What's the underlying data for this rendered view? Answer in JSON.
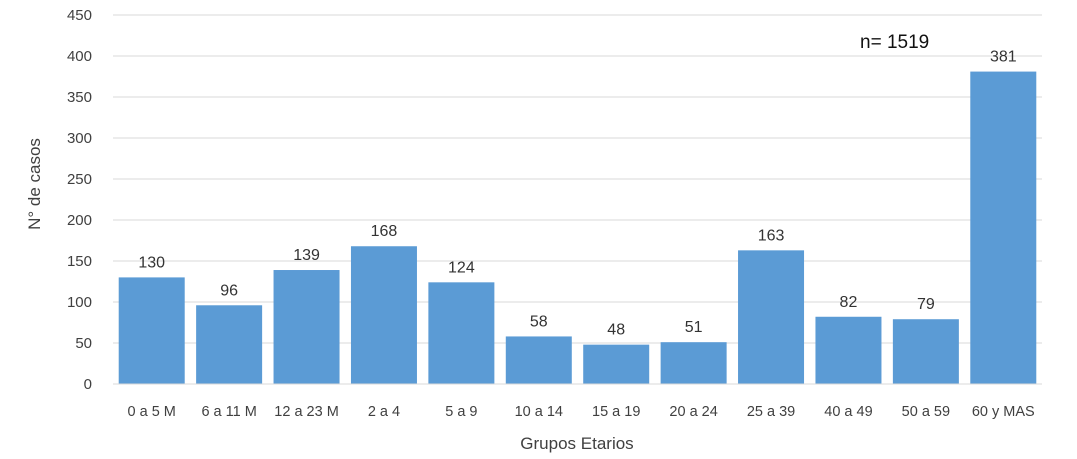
{
  "chart_data": {
    "type": "bar",
    "categories": [
      "0 a 5 M",
      "6 a 11 M",
      "12 a 23 M",
      "2 a 4",
      "5 a 9",
      "10 a 14",
      "15 a 19",
      "20 a 24",
      "25 a 39",
      "40 a 49",
      "50 a 59",
      "60 y MAS"
    ],
    "values": [
      130,
      96,
      139,
      168,
      124,
      58,
      48,
      51,
      163,
      82,
      79,
      381
    ],
    "xlabel": "Grupos Etarios",
    "ylabel": "N° de casos",
    "ylim": [
      0,
      450
    ],
    "yticks": [
      0,
      50,
      100,
      150,
      200,
      250,
      300,
      350,
      400,
      450
    ],
    "annotation": "n= 1519",
    "grid": true,
    "bar_color": "#5b9bd5",
    "grid_color": "#d9d9d9"
  }
}
